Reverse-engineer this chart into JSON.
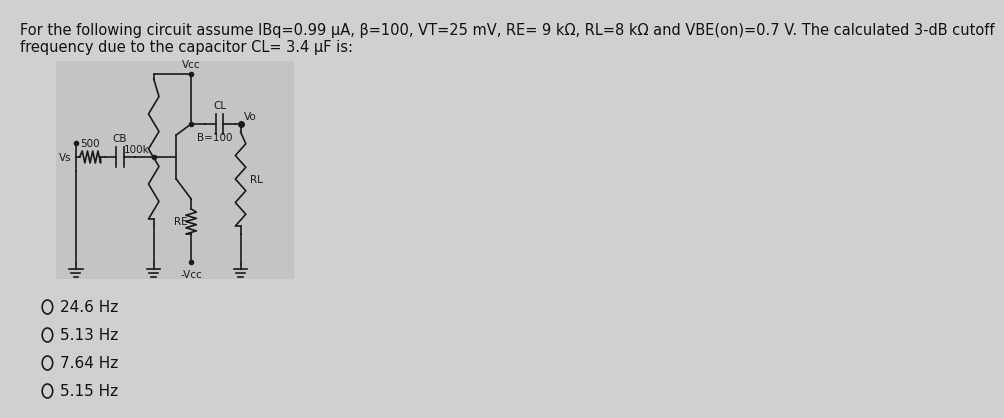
{
  "title_raw_line1": "For the following circuit assume IBq=0.99 μA, β=100, VT=25 mV, RE= 9 kΩ, RL=8 kΩ and VBE(on)=0.7 V. The calculated 3-dB cutoff",
  "title_raw_line2": "frequency due to the capacitor CL= 3.4 μF is:",
  "choices": [
    "24.6 Hz",
    "5.13 Hz",
    "7.64 Hz",
    "5.15 Hz"
  ],
  "bg_color": "#d0d0d0",
  "text_color": "#111111",
  "circuit_bg": "#c4c4c4",
  "font_size_title": 10.5,
  "font_size_choices": 11
}
